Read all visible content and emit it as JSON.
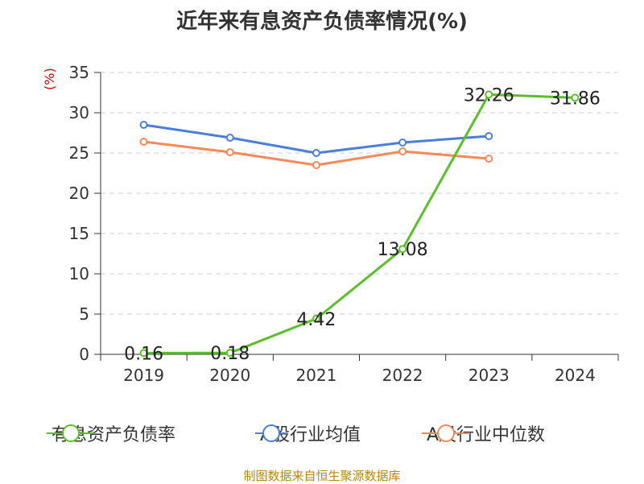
{
  "title": "近年来有息资产负债率情况(%)",
  "unit_label": "(%)",
  "source": "制图数据来自恒生聚源数据库",
  "colors": {
    "green": "#5cbf2a",
    "blue": "#4a7fd9",
    "orange": "#f5895a",
    "grid": "#cccccc",
    "axis": "#333333"
  },
  "chart_data": {
    "type": "line",
    "title": "近年来有息资产负债率情况(%)",
    "ylabel": "(%)",
    "xlabel": "",
    "categories": [
      "2019",
      "2020",
      "2021",
      "2022",
      "2023",
      "2024"
    ],
    "ylim": [
      0,
      35
    ],
    "yticks": [
      0,
      5,
      10,
      15,
      20,
      25,
      30,
      35
    ],
    "grid": true,
    "legend_position": "bottom",
    "series": [
      {
        "name": "有息资产负债率",
        "color": "#5cbf2a",
        "values": [
          0.16,
          0.18,
          4.42,
          13.08,
          32.26,
          31.86
        ],
        "labels": [
          "0.16",
          "0.18",
          "4.42",
          "13.08",
          "32.26",
          "31.86"
        ]
      },
      {
        "name": "A股行业均值",
        "color": "#4a7fd9",
        "values": [
          28.5,
          26.9,
          25.0,
          26.3,
          27.1,
          null
        ]
      },
      {
        "name": "A股行业中位数",
        "color": "#f5895a",
        "values": [
          26.4,
          25.1,
          23.5,
          25.2,
          24.3,
          null
        ]
      }
    ]
  }
}
